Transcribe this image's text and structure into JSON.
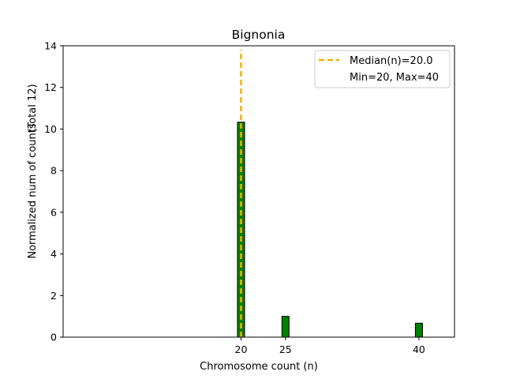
{
  "chart_data": {
    "type": "bar",
    "title": "Bignonia",
    "xlabel": "Chromosome count (n)",
    "ylabel": "Normalized num of counts",
    "ylabel_note": "(Total 12)",
    "xlim": [
      0,
      44
    ],
    "ylim": [
      0,
      14
    ],
    "x_ticks": [
      20,
      25,
      40
    ],
    "y_ticks": [
      0,
      2,
      4,
      6,
      8,
      10,
      12,
      14
    ],
    "bar_width": 0.8,
    "bars": [
      {
        "x": 20,
        "value": 10.33
      },
      {
        "x": 25,
        "value": 1.0
      },
      {
        "x": 40,
        "value": 0.67
      }
    ],
    "bar_color": "#008000",
    "bar_edge_color": "#000000",
    "median": {
      "value": 20.0,
      "color": "#f5b000",
      "label": "Median(n)=20.0"
    },
    "legend": {
      "placement": "top-right",
      "entries": [
        "Median(n)=20.0",
        "Min=20, Max=40"
      ]
    },
    "grid": false
  }
}
